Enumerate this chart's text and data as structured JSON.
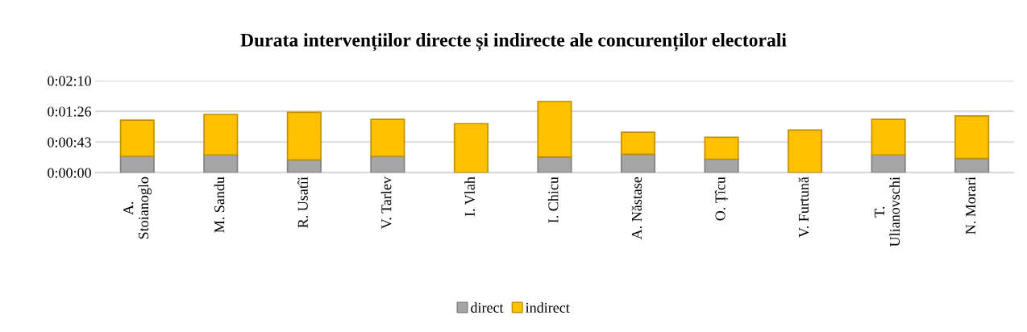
{
  "chart_data": {
    "type": "bar",
    "stacked": true,
    "title": "Durata intervențiilor directe și indirecte ale concurenților electorali",
    "categories": [
      "A. Stoianoglo",
      "M. Sandu",
      "R. Usatîi",
      "V. Tarlev",
      "I. Vlah",
      "I. Chicu",
      "A. Năstase",
      "O. Țîcu",
      "V. Furtună",
      "T. Ulianovschi",
      "N. Morari"
    ],
    "series": [
      {
        "name": "direct",
        "color": "#a6a6a6",
        "values": [
          23,
          25,
          18,
          23,
          0,
          22,
          26,
          19,
          0,
          25,
          20
        ]
      },
      {
        "name": "indirect",
        "color": "#ffc000",
        "values": [
          51,
          57,
          67,
          52,
          69,
          78,
          31,
          31,
          60,
          50,
          60
        ]
      }
    ],
    "ylim": [
      0,
      129.6
    ],
    "yticks": [
      {
        "value": 0,
        "label": "0:00:00"
      },
      {
        "value": 43.2,
        "label": "0:00:43"
      },
      {
        "value": 86.4,
        "label": "0:01:26"
      },
      {
        "value": 129.6,
        "label": "0:02:10"
      }
    ],
    "grid": "y",
    "legend": "bottom"
  }
}
